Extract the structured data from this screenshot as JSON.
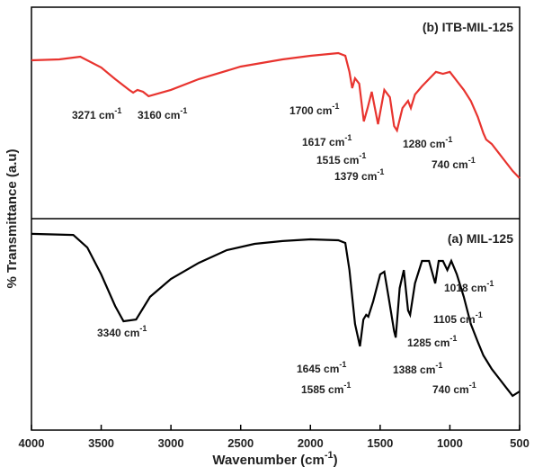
{
  "chart_data": [
    {
      "type": "line",
      "title": "(b) ITB-MIL-125",
      "ylabel": "% Transmittance (a.u)",
      "ylim": [
        0,
        100
      ],
      "series": [
        {
          "color": "#e8342f",
          "x": [
            4000,
            3800,
            3650,
            3500,
            3400,
            3300,
            3271,
            3240,
            3200,
            3160,
            3000,
            2800,
            2500,
            2200,
            2000,
            1800,
            1750,
            1720,
            1700,
            1680,
            1650,
            1617,
            1590,
            1560,
            1515,
            1470,
            1430,
            1400,
            1379,
            1340,
            1300,
            1280,
            1250,
            1200,
            1100,
            1050,
            1000,
            950,
            900,
            850,
            800,
            760,
            740,
            700,
            650,
            600,
            550,
            500
          ],
          "values": [
            74.9,
            75.3,
            76.6,
            71.5,
            66,
            60.9,
            59.6,
            60.9,
            60,
            57.9,
            60.9,
            66,
            71.9,
            75.3,
            77,
            78.3,
            77,
            69.4,
            61.7,
            66.4,
            63.8,
            46,
            52.3,
            60,
            44.7,
            60.9,
            57.4,
            43.8,
            41.7,
            52.3,
            55.7,
            52.3,
            58.7,
            62.6,
            69.4,
            68.5,
            69.4,
            65.1,
            60.9,
            55.7,
            48.1,
            40.4,
            37.4,
            35.3,
            31.1,
            26.8,
            22.6,
            19.1
          ]
        }
      ],
      "annotations": [
        {
          "text": "3271 cm",
          "sup": "-1"
        },
        {
          "text": "3160 cm",
          "sup": "-1"
        },
        {
          "text": "1700 cm",
          "sup": "-1"
        },
        {
          "text": "1617 cm",
          "sup": "-1"
        },
        {
          "text": "1515 cm",
          "sup": "-1"
        },
        {
          "text": "1379 cm",
          "sup": "-1"
        },
        {
          "text": "1280 cm",
          "sup": "-1"
        },
        {
          "text": "740 cm",
          "sup": "-1"
        }
      ]
    },
    {
      "type": "line",
      "title": "(a) MIL-125",
      "ylim": [
        0,
        100
      ],
      "xlim": [
        4000,
        500
      ],
      "xticks": [
        4000,
        3500,
        3000,
        2500,
        2000,
        1500,
        1000,
        500
      ],
      "xlabel": {
        "text": "Wavenumber (cm",
        "sup": "-1",
        "end": ")"
      },
      "series": [
        {
          "color": "#000000",
          "x": [
            4000,
            3700,
            3600,
            3500,
            3400,
            3340,
            3250,
            3150,
            3000,
            2800,
            2600,
            2400,
            2200,
            2000,
            1800,
            1750,
            1720,
            1680,
            1645,
            1620,
            1600,
            1585,
            1550,
            1500,
            1470,
            1440,
            1400,
            1388,
            1360,
            1330,
            1300,
            1285,
            1250,
            1200,
            1150,
            1105,
            1080,
            1050,
            1018,
            990,
            950,
            900,
            850,
            800,
            760,
            740,
            700,
            650,
            600,
            550,
            500
          ],
          "values": [
            92.8,
            92.3,
            86.4,
            73.6,
            58.7,
            51.5,
            52.3,
            63,
            71.5,
            79.1,
            85.1,
            88.1,
            89.4,
            90.2,
            89.8,
            88.5,
            75.7,
            50.2,
            39.6,
            52.3,
            54.5,
            53.6,
            60.9,
            73.6,
            74.9,
            63,
            46.8,
            43.8,
            67.2,
            75.7,
            56.6,
            54.5,
            69.4,
            80,
            80,
            69.4,
            80,
            80,
            75.7,
            80,
            73.6,
            63,
            50.2,
            41.7,
            35.3,
            33.2,
            28.9,
            24.7,
            20.4,
            16.2,
            18.3
          ]
        }
      ],
      "annotations": [
        {
          "text": "3340 cm",
          "sup": "-1"
        },
        {
          "text": "1645 cm",
          "sup": "-1"
        },
        {
          "text": "1585 cm",
          "sup": "-1"
        },
        {
          "text": "1388 cm",
          "sup": "-1"
        },
        {
          "text": "1285 cm",
          "sup": "-1"
        },
        {
          "text": "1105 cm",
          "sup": "-1"
        },
        {
          "text": "1018 cm",
          "sup": "-1"
        },
        {
          "text": "740 cm",
          "sup": "-1"
        }
      ]
    }
  ]
}
